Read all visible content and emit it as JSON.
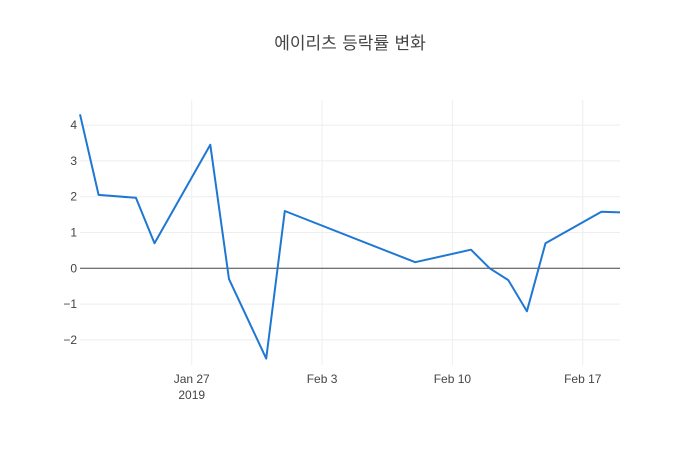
{
  "chart_data": {
    "type": "line",
    "title": "에이리츠 등락률 변화",
    "xlabel": "",
    "ylabel": "",
    "grid": true,
    "x_ticks": [
      {
        "date": "2019-01-27",
        "label": "Jan 27",
        "sublabel": "2019"
      },
      {
        "date": "2019-02-03",
        "label": "Feb 3",
        "sublabel": ""
      },
      {
        "date": "2019-02-10",
        "label": "Feb 10",
        "sublabel": ""
      },
      {
        "date": "2019-02-17",
        "label": "Feb 17",
        "sublabel": ""
      }
    ],
    "y_ticks": [
      {
        "value": -2,
        "label": "−2"
      },
      {
        "value": -1,
        "label": "−1"
      },
      {
        "value": 0,
        "label": "0"
      },
      {
        "value": 1,
        "label": "1"
      },
      {
        "value": 2,
        "label": "2"
      },
      {
        "value": 3,
        "label": "3"
      },
      {
        "value": 4,
        "label": "4"
      }
    ],
    "xlim": [
      "2019-01-21",
      "2019-02-19"
    ],
    "ylim": [
      -2.7,
      4.7
    ],
    "series": [
      {
        "color": "#1f77d4",
        "points": [
          {
            "x": "2019-01-21",
            "y": 4.3
          },
          {
            "x": "2019-01-22",
            "y": 2.05
          },
          {
            "x": "2019-01-24",
            "y": 1.97
          },
          {
            "x": "2019-01-25",
            "y": 0.7
          },
          {
            "x": "2019-01-28",
            "y": 3.45
          },
          {
            "x": "2019-01-29",
            "y": -0.3
          },
          {
            "x": "2019-01-31",
            "y": -2.52
          },
          {
            "x": "2019-02-01",
            "y": 1.6
          },
          {
            "x": "2019-02-08",
            "y": 0.17
          },
          {
            "x": "2019-02-11",
            "y": 0.52
          },
          {
            "x": "2019-02-12",
            "y": 0.0
          },
          {
            "x": "2019-02-13",
            "y": -0.33
          },
          {
            "x": "2019-02-14",
            "y": -1.2
          },
          {
            "x": "2019-02-15",
            "y": 0.7
          },
          {
            "x": "2019-02-18",
            "y": 1.58
          },
          {
            "x": "2019-02-19",
            "y": 1.56
          }
        ]
      }
    ]
  }
}
